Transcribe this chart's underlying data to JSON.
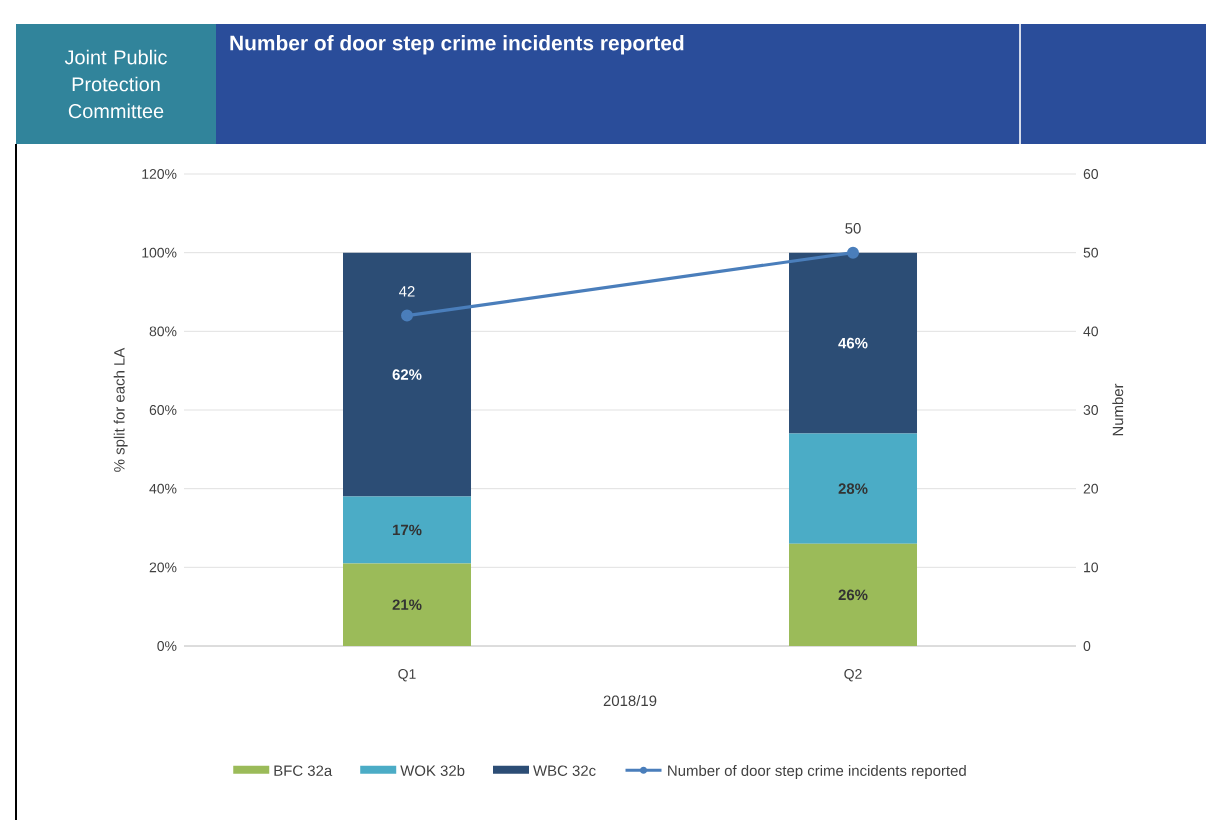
{
  "chart_data": {
    "type": "bar",
    "stacked": true,
    "title": "Number of door step crime incidents reported",
    "annotations": [
      "Joint Public Protection Committee"
    ],
    "categories": [
      "Q1",
      "Q2"
    ],
    "xlabel": "2018/19",
    "ylabel": "% split for each LA",
    "y2label": "Number",
    "series": [
      {
        "name": "BFC 32a",
        "color": "#9bbb59",
        "values": [
          21,
          26
        ],
        "value_labels": [
          "21%",
          "26%"
        ]
      },
      {
        "name": "WOK 32b",
        "color": "#4bacc6",
        "values": [
          17,
          28
        ],
        "value_labels": [
          "17%",
          "28%"
        ]
      },
      {
        "name": "WBC 32c",
        "color": "#2c4d75",
        "values": [
          62,
          46
        ],
        "value_labels": [
          "62%",
          "46%"
        ]
      },
      {
        "name": "Number of door step crime incidents reported",
        "type": "line",
        "axis": "y2",
        "color": "#4a7ebb",
        "marker": "circle",
        "values": [
          42,
          50
        ],
        "value_labels": [
          "42",
          "50"
        ]
      }
    ],
    "ylim": [
      0,
      120
    ],
    "yticks": [
      {
        "value": 0,
        "label": "0%"
      },
      {
        "value": 20,
        "label": "20%"
      },
      {
        "value": 40,
        "label": "40%"
      },
      {
        "value": 60,
        "label": "60%"
      },
      {
        "value": 80,
        "label": "80%"
      },
      {
        "value": 100,
        "label": "100%"
      },
      {
        "value": 120,
        "label": "120%"
      }
    ],
    "y2lim": [
      0,
      60
    ],
    "y2ticks": [
      0,
      10,
      20,
      30,
      40,
      50,
      60
    ],
    "grid": "y",
    "legend": "bottom"
  }
}
